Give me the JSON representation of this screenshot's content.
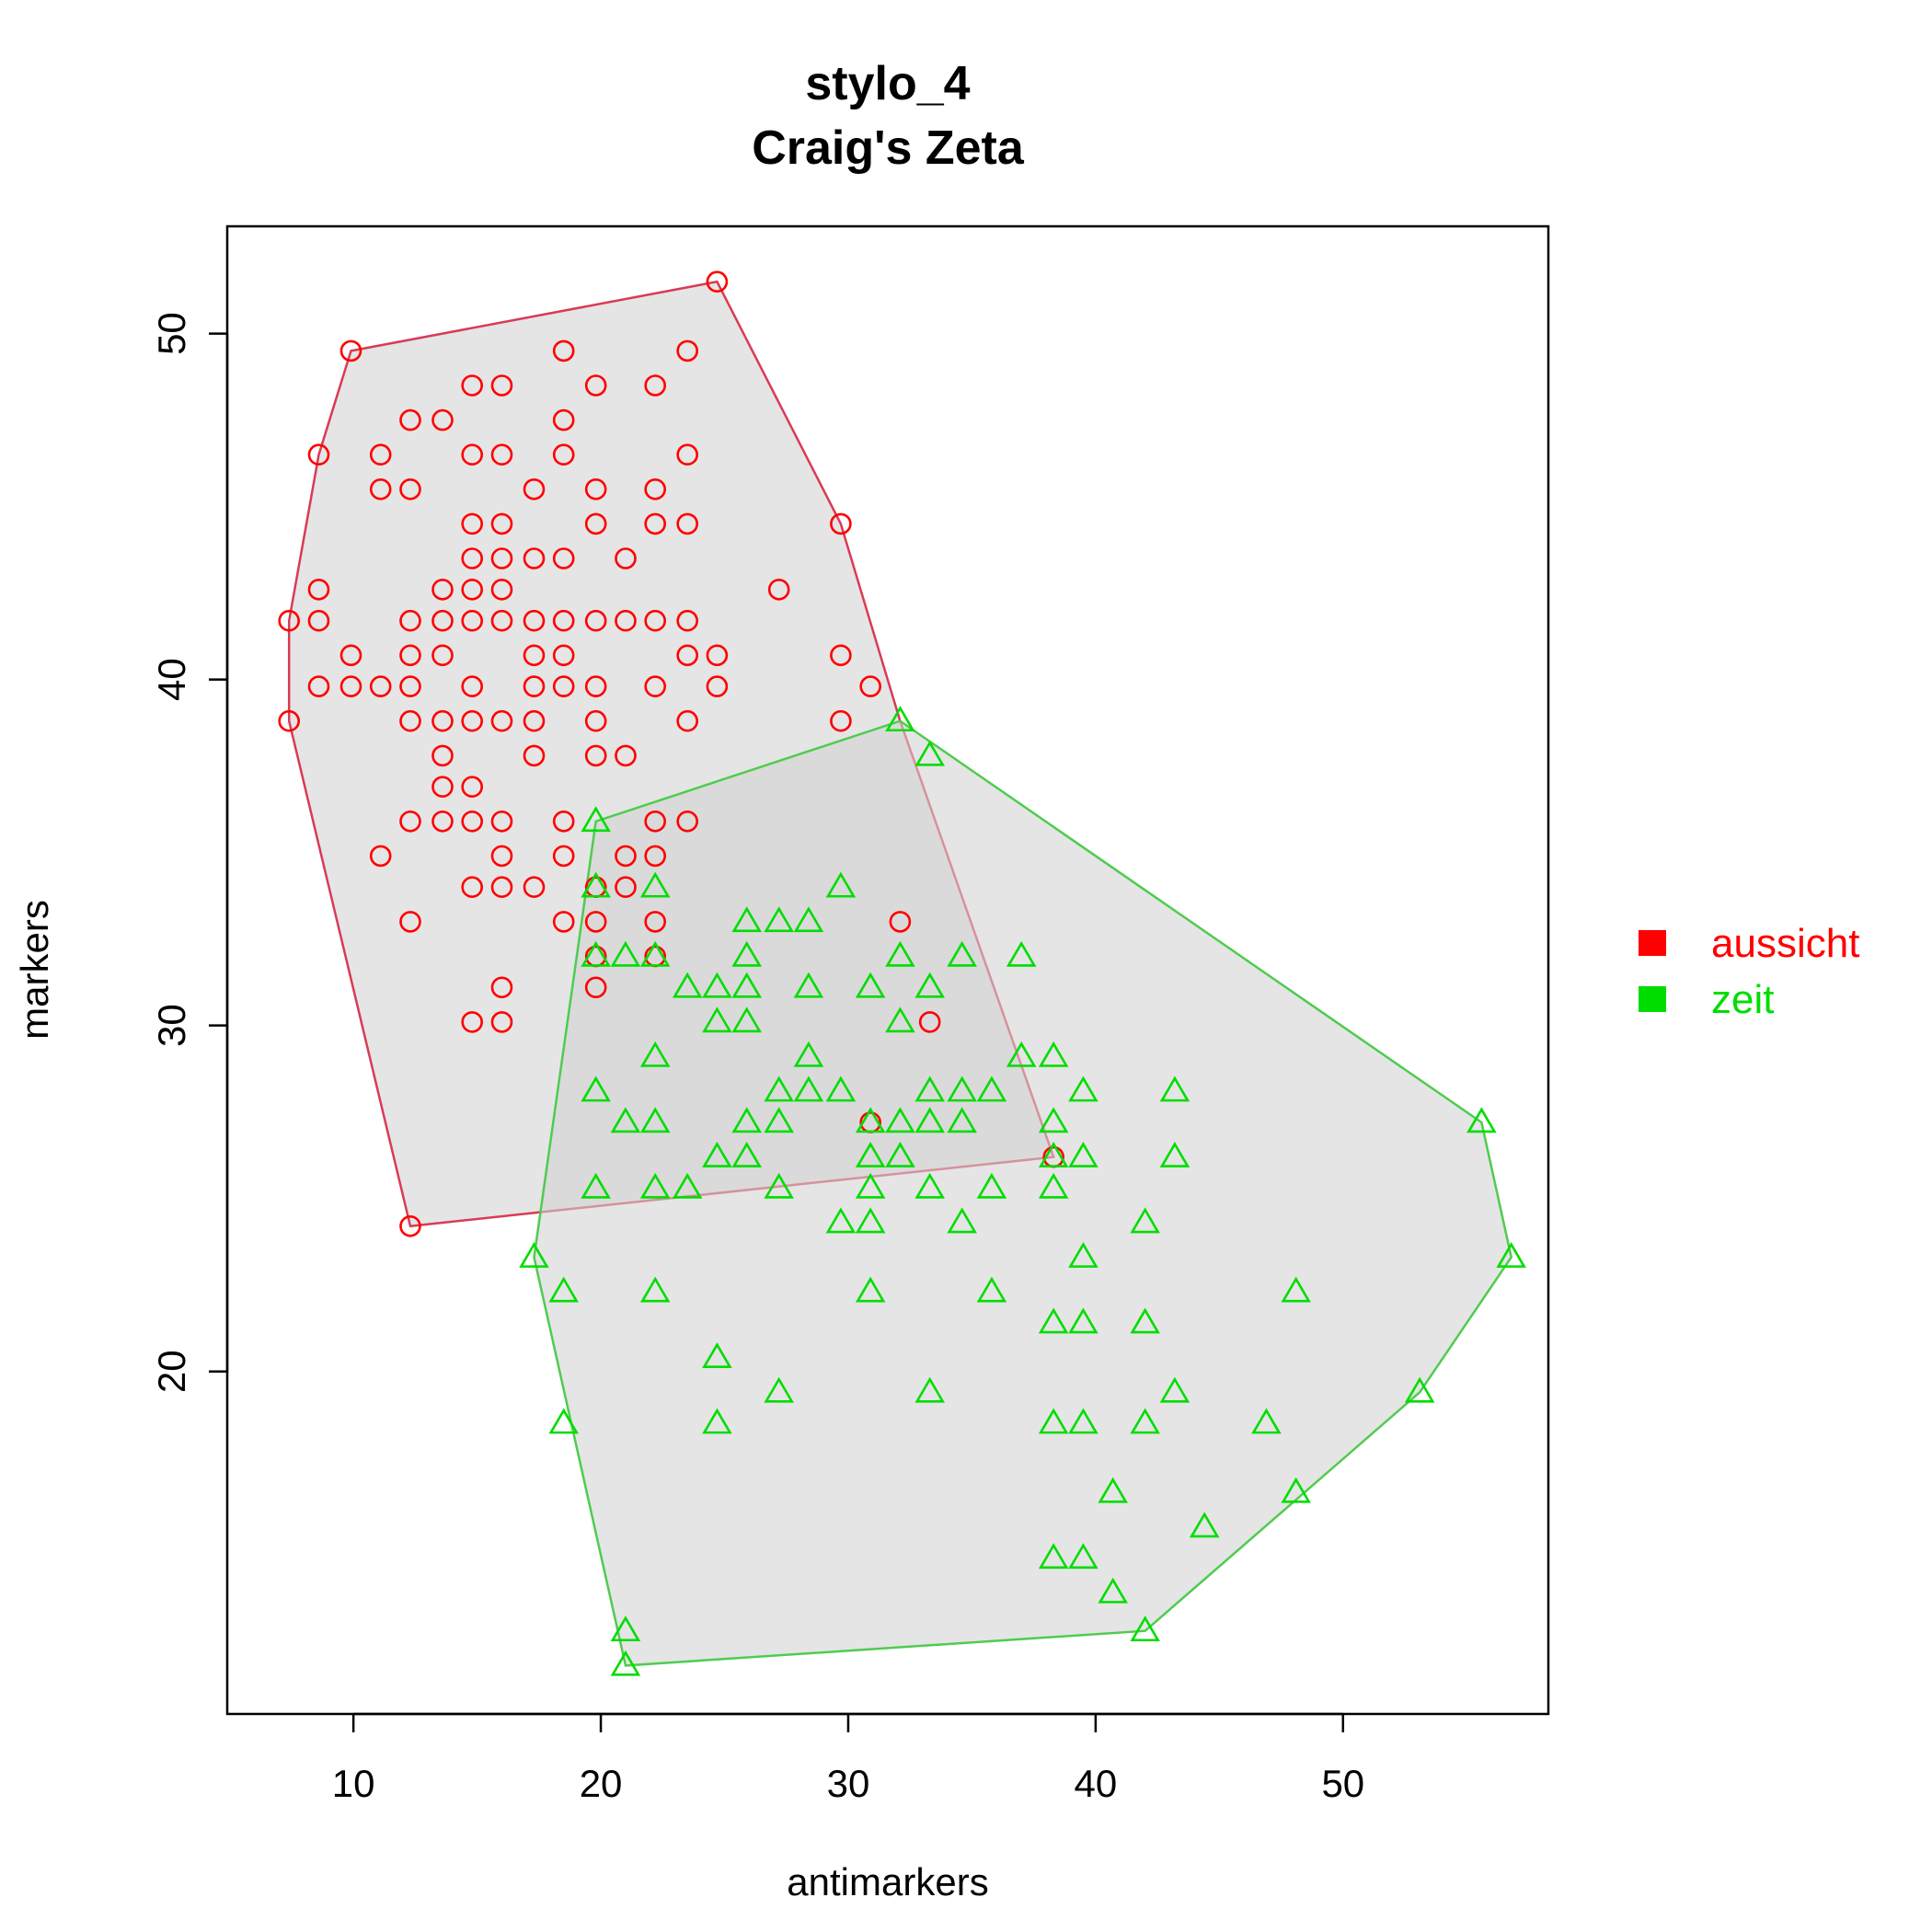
{
  "chart_data": {
    "type": "scatter",
    "title": "stylo_4",
    "subtitle": "Craig's Zeta",
    "xlabel": "antimarkers",
    "ylabel": "markers",
    "xlim": [
      4.9,
      58.3
    ],
    "ylim": [
      10.1,
      53.1
    ],
    "x_ticks": [
      10,
      20,
      30,
      40,
      50
    ],
    "y_ticks": [
      20,
      30,
      40,
      50
    ],
    "legend_position": "right",
    "hull_fill": "#d3d3d3",
    "series": [
      {
        "name": "aussicht",
        "color": "#ff0000",
        "hull_color": "#d93b55",
        "marker": "circle",
        "hull": [
          [
            9.9,
            49.5
          ],
          [
            24.7,
            51.5
          ],
          [
            29.7,
            44.5
          ],
          [
            32.1,
            38.8
          ],
          [
            38.3,
            26.2
          ],
          [
            12.3,
            24.2
          ],
          [
            7.4,
            38.8
          ],
          [
            7.4,
            41.7
          ],
          [
            8.6,
            46.5
          ]
        ],
        "points": [
          [
            24.7,
            51.5
          ],
          [
            9.9,
            49.5
          ],
          [
            18.5,
            49.5
          ],
          [
            23.5,
            49.5
          ],
          [
            14.8,
            48.5
          ],
          [
            16.0,
            48.5
          ],
          [
            19.8,
            48.5
          ],
          [
            22.2,
            48.5
          ],
          [
            12.3,
            47.5
          ],
          [
            13.6,
            47.5
          ],
          [
            18.5,
            47.5
          ],
          [
            8.6,
            46.5
          ],
          [
            11.1,
            46.5
          ],
          [
            14.8,
            46.5
          ],
          [
            16.0,
            46.5
          ],
          [
            18.5,
            46.5
          ],
          [
            23.5,
            46.5
          ],
          [
            11.1,
            45.5
          ],
          [
            12.3,
            45.5
          ],
          [
            17.3,
            45.5
          ],
          [
            19.8,
            45.5
          ],
          [
            22.2,
            45.5
          ],
          [
            14.8,
            44.5
          ],
          [
            16.0,
            44.5
          ],
          [
            19.8,
            44.5
          ],
          [
            22.2,
            44.5
          ],
          [
            23.5,
            44.5
          ],
          [
            29.7,
            44.5
          ],
          [
            14.8,
            43.5
          ],
          [
            16.0,
            43.5
          ],
          [
            17.3,
            43.5
          ],
          [
            18.5,
            43.5
          ],
          [
            21.0,
            43.5
          ],
          [
            8.6,
            42.6
          ],
          [
            13.6,
            42.6
          ],
          [
            14.8,
            42.6
          ],
          [
            16.0,
            42.6
          ],
          [
            27.2,
            42.6
          ],
          [
            7.4,
            41.7
          ],
          [
            8.6,
            41.7
          ],
          [
            12.3,
            41.7
          ],
          [
            13.6,
            41.7
          ],
          [
            14.8,
            41.7
          ],
          [
            16.0,
            41.7
          ],
          [
            17.3,
            41.7
          ],
          [
            18.5,
            41.7
          ],
          [
            19.8,
            41.7
          ],
          [
            21.0,
            41.7
          ],
          [
            22.2,
            41.7
          ],
          [
            23.5,
            41.7
          ],
          [
            9.9,
            40.7
          ],
          [
            12.3,
            40.7
          ],
          [
            13.6,
            40.7
          ],
          [
            17.3,
            40.7
          ],
          [
            18.5,
            40.7
          ],
          [
            23.5,
            40.7
          ],
          [
            24.7,
            40.7
          ],
          [
            29.7,
            40.7
          ],
          [
            8.6,
            39.8
          ],
          [
            9.9,
            39.8
          ],
          [
            11.1,
            39.8
          ],
          [
            12.3,
            39.8
          ],
          [
            14.8,
            39.8
          ],
          [
            17.3,
            39.8
          ],
          [
            18.5,
            39.8
          ],
          [
            19.8,
            39.8
          ],
          [
            22.2,
            39.8
          ],
          [
            24.7,
            39.8
          ],
          [
            30.9,
            39.8
          ],
          [
            7.4,
            38.8
          ],
          [
            12.3,
            38.8
          ],
          [
            13.6,
            38.8
          ],
          [
            14.8,
            38.8
          ],
          [
            16.0,
            38.8
          ],
          [
            17.3,
            38.8
          ],
          [
            19.8,
            38.8
          ],
          [
            23.5,
            38.8
          ],
          [
            29.7,
            38.8
          ],
          [
            13.6,
            37.8
          ],
          [
            17.3,
            37.8
          ],
          [
            19.8,
            37.8
          ],
          [
            21.0,
            37.8
          ],
          [
            13.6,
            36.9
          ],
          [
            14.8,
            36.9
          ],
          [
            12.3,
            35.9
          ],
          [
            13.6,
            35.9
          ],
          [
            14.8,
            35.9
          ],
          [
            16.0,
            35.9
          ],
          [
            18.5,
            35.9
          ],
          [
            22.2,
            35.9
          ],
          [
            23.5,
            35.9
          ],
          [
            11.1,
            34.9
          ],
          [
            16.0,
            34.9
          ],
          [
            18.5,
            34.9
          ],
          [
            21.0,
            34.9
          ],
          [
            22.2,
            34.9
          ],
          [
            14.8,
            34.0
          ],
          [
            16.0,
            34.0
          ],
          [
            17.3,
            34.0
          ],
          [
            19.8,
            34.0
          ],
          [
            21.0,
            34.0
          ],
          [
            12.3,
            33.0
          ],
          [
            18.5,
            33.0
          ],
          [
            19.8,
            33.0
          ],
          [
            22.2,
            33.0
          ],
          [
            32.1,
            33.0
          ],
          [
            19.8,
            32.0
          ],
          [
            22.2,
            32.0
          ],
          [
            16.0,
            31.1
          ],
          [
            19.8,
            31.1
          ],
          [
            14.8,
            30.1
          ],
          [
            16.0,
            30.1
          ],
          [
            33.3,
            30.1
          ],
          [
            30.9,
            27.2
          ],
          [
            38.3,
            26.2
          ],
          [
            12.3,
            24.2
          ]
        ]
      },
      {
        "name": "zeit",
        "color": "#00dd00",
        "hull_color": "#4fcc4f",
        "marker": "triangle",
        "hull": [
          [
            19.8,
            35.9
          ],
          [
            32.1,
            38.8
          ],
          [
            55.6,
            27.2
          ],
          [
            56.8,
            23.3
          ],
          [
            53.1,
            19.4
          ],
          [
            42.0,
            12.5
          ],
          [
            21.0,
            11.5
          ],
          [
            17.3,
            23.3
          ]
        ],
        "points": [
          [
            32.1,
            38.8
          ],
          [
            33.3,
            37.8
          ],
          [
            19.8,
            35.9
          ],
          [
            19.8,
            34.0
          ],
          [
            22.2,
            34.0
          ],
          [
            29.7,
            34.0
          ],
          [
            25.9,
            33.0
          ],
          [
            27.2,
            33.0
          ],
          [
            28.4,
            33.0
          ],
          [
            19.8,
            32.0
          ],
          [
            21.0,
            32.0
          ],
          [
            22.2,
            32.0
          ],
          [
            25.9,
            32.0
          ],
          [
            32.1,
            32.0
          ],
          [
            34.6,
            32.0
          ],
          [
            37.0,
            32.0
          ],
          [
            23.5,
            31.1
          ],
          [
            24.7,
            31.1
          ],
          [
            25.9,
            31.1
          ],
          [
            28.4,
            31.1
          ],
          [
            30.9,
            31.1
          ],
          [
            33.3,
            31.1
          ],
          [
            24.7,
            30.1
          ],
          [
            25.9,
            30.1
          ],
          [
            32.1,
            30.1
          ],
          [
            22.2,
            29.1
          ],
          [
            28.4,
            29.1
          ],
          [
            37.0,
            29.1
          ],
          [
            38.3,
            29.1
          ],
          [
            19.8,
            28.1
          ],
          [
            27.2,
            28.1
          ],
          [
            28.4,
            28.1
          ],
          [
            29.7,
            28.1
          ],
          [
            33.3,
            28.1
          ],
          [
            34.6,
            28.1
          ],
          [
            35.8,
            28.1
          ],
          [
            39.5,
            28.1
          ],
          [
            43.2,
            28.1
          ],
          [
            21.0,
            27.2
          ],
          [
            22.2,
            27.2
          ],
          [
            25.9,
            27.2
          ],
          [
            27.2,
            27.2
          ],
          [
            30.9,
            27.2
          ],
          [
            32.1,
            27.2
          ],
          [
            33.3,
            27.2
          ],
          [
            34.6,
            27.2
          ],
          [
            38.3,
            27.2
          ],
          [
            55.6,
            27.2
          ],
          [
            24.7,
            26.2
          ],
          [
            25.9,
            26.2
          ],
          [
            30.9,
            26.2
          ],
          [
            32.1,
            26.2
          ],
          [
            38.3,
            26.2
          ],
          [
            39.5,
            26.2
          ],
          [
            43.2,
            26.2
          ],
          [
            19.8,
            25.3
          ],
          [
            22.2,
            25.3
          ],
          [
            23.5,
            25.3
          ],
          [
            27.2,
            25.3
          ],
          [
            30.9,
            25.3
          ],
          [
            33.3,
            25.3
          ],
          [
            35.8,
            25.3
          ],
          [
            38.3,
            25.3
          ],
          [
            29.7,
            24.3
          ],
          [
            30.9,
            24.3
          ],
          [
            34.6,
            24.3
          ],
          [
            42.0,
            24.3
          ],
          [
            17.3,
            23.3
          ],
          [
            39.5,
            23.3
          ],
          [
            56.8,
            23.3
          ],
          [
            18.5,
            22.3
          ],
          [
            22.2,
            22.3
          ],
          [
            30.9,
            22.3
          ],
          [
            35.8,
            22.3
          ],
          [
            48.1,
            22.3
          ],
          [
            38.3,
            21.4
          ],
          [
            39.5,
            21.4
          ],
          [
            42.0,
            21.4
          ],
          [
            24.7,
            20.4
          ],
          [
            27.2,
            19.4
          ],
          [
            33.3,
            19.4
          ],
          [
            43.2,
            19.4
          ],
          [
            53.1,
            19.4
          ],
          [
            18.5,
            18.5
          ],
          [
            24.7,
            18.5
          ],
          [
            38.3,
            18.5
          ],
          [
            39.5,
            18.5
          ],
          [
            42.0,
            18.5
          ],
          [
            46.9,
            18.5
          ],
          [
            40.7,
            16.5
          ],
          [
            48.1,
            16.5
          ],
          [
            44.4,
            15.5
          ],
          [
            38.3,
            14.6
          ],
          [
            39.5,
            14.6
          ],
          [
            40.7,
            13.6
          ],
          [
            21.0,
            12.5
          ],
          [
            42.0,
            12.5
          ],
          [
            21.0,
            11.5
          ]
        ]
      }
    ]
  }
}
